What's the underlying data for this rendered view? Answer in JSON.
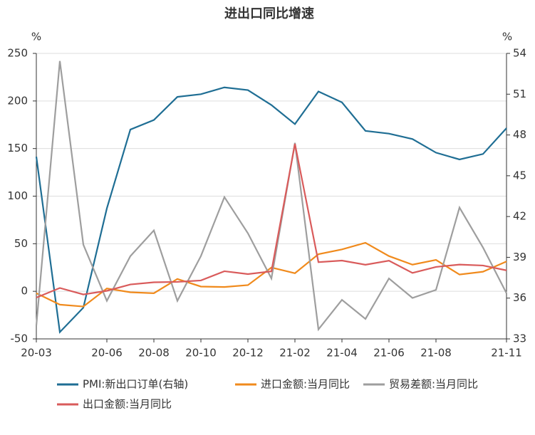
{
  "chart_data": {
    "type": "line",
    "title": "进出口同比增速",
    "y_label": "%",
    "y2_label": "%",
    "categories": [
      "20-03",
      null,
      null,
      "20-06",
      null,
      "20-08",
      null,
      "20-10",
      null,
      "20-12",
      null,
      "21-02",
      null,
      "21-04",
      null,
      "21-06",
      null,
      "21-08",
      null,
      null,
      "21-11"
    ],
    "ylim": [
      -50,
      250
    ],
    "yticks": [
      -50,
      0,
      50,
      100,
      150,
      200,
      250
    ],
    "y2lim": [
      33,
      54
    ],
    "y2ticks": [
      33,
      36,
      39,
      42,
      45,
      48,
      51,
      54
    ],
    "grid": true,
    "legend": "bottom",
    "series": [
      {
        "name": "PMI:新出口订单(右轴)",
        "color": "#1f6e94",
        "axis": "y2",
        "values": [
          46.4,
          33.5,
          35.3,
          42.6,
          48.4,
          49.1,
          50.8,
          51.0,
          51.5,
          51.3,
          50.2,
          48.8,
          51.2,
          50.4,
          48.3,
          48.1,
          47.7,
          46.7,
          46.2,
          46.6,
          48.5
        ]
      },
      {
        "name": "进口金额:当月同比",
        "color": "#f08a1c",
        "values": [
          -2,
          -14,
          -16,
          3,
          -1,
          -2,
          13,
          5,
          4.5,
          6.5,
          25,
          19,
          39,
          44,
          51,
          37,
          28,
          33,
          17.6,
          20.6,
          31.4
        ]
      },
      {
        "name": "贸易差额:当月同比",
        "color": "#9e9e9e",
        "values": [
          -36,
          242,
          49,
          -10,
          37,
          64,
          -10,
          37,
          99,
          61,
          13.5,
          156,
          -40,
          -9,
          -29,
          13.5,
          -7,
          1.5,
          88,
          46,
          -2
        ]
      },
      {
        "name": "出口金额:当月同比",
        "color": "#d95b5b",
        "values": [
          -6.6,
          3.5,
          -3.3,
          0.5,
          7.2,
          9.5,
          9.9,
          11.4,
          21.1,
          18.1,
          21.0,
          154.9,
          30.6,
          32.3,
          27.9,
          32.2,
          19.3,
          25.6,
          28.1,
          27.1,
          22.0
        ]
      }
    ]
  }
}
